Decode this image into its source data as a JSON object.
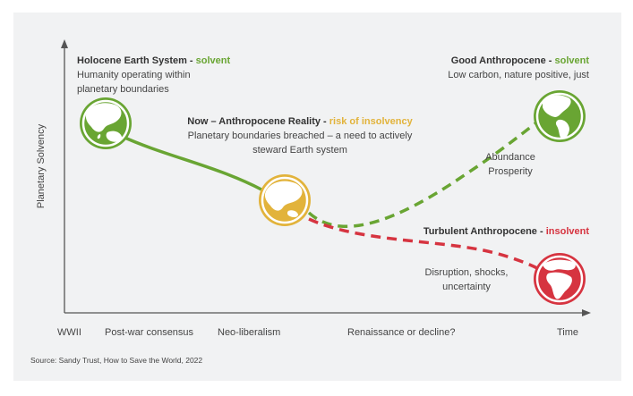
{
  "states": [
    {
      "title": "Holocene Earth System - ",
      "status": "solvent",
      "description_lines": [
        "Humanity operating within",
        "planetary boundaries"
      ],
      "color": "#69a533"
    },
    {
      "title": "Now – Anthropocene Reality - ",
      "status": "risk of insolvency",
      "description_lines": [
        "Planetary boundaries breached – a need to actively",
        "steward Earth system"
      ],
      "color": "#e2b33b"
    },
    {
      "title": "Good Anthropocene - ",
      "status": "solvent",
      "description_lines": [
        "Low carbon, nature positive, just"
      ],
      "color": "#69a533"
    },
    {
      "title": "Turbulent Anthropocene - ",
      "status": "insolvent",
      "description_lines": [],
      "color": "#d63440"
    }
  ],
  "annotations": [
    {
      "lines": [
        "Abundance",
        "Prosperity"
      ]
    },
    {
      "lines": [
        "Disruption, shocks,",
        "uncertainty"
      ]
    }
  ],
  "axes": {
    "y_label": "Planetary Solvency",
    "x_ticks": [
      "WWII",
      "Post-war consensus",
      "Neo-liberalism",
      "Renaissance or decline?",
      "Time"
    ]
  },
  "icons": [
    "globe-asia-australia-icon",
    "globe-asia-icon",
    "globe-americas-icon",
    "globe-africa-europe-icon"
  ],
  "source": "Source: Sandy Trust, How to Save the World, 2022"
}
